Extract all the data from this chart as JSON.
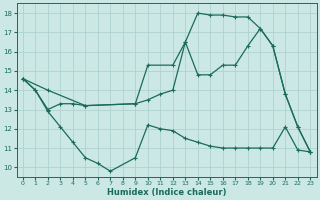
{
  "xlabel": "Humidex (Indice chaleur)",
  "bg_color": "#cce8e4",
  "grid_color": "#aacfcb",
  "line_color": "#1a6b5a",
  "xlim": [
    -0.5,
    23.5
  ],
  "ylim": [
    9.5,
    18.5
  ],
  "xticks": [
    0,
    1,
    2,
    3,
    4,
    5,
    6,
    7,
    8,
    9,
    10,
    11,
    12,
    13,
    14,
    15,
    16,
    17,
    18,
    19,
    20,
    21,
    22,
    23
  ],
  "yticks": [
    10,
    11,
    12,
    13,
    14,
    15,
    16,
    17,
    18
  ],
  "line1_x": [
    0,
    1,
    2,
    3,
    4,
    5,
    6,
    7,
    9,
    10,
    11,
    12,
    13,
    14,
    15,
    16,
    17,
    18,
    19,
    20,
    21,
    22,
    23
  ],
  "line1_y": [
    14.6,
    14.0,
    12.9,
    12.1,
    11.3,
    10.5,
    10.2,
    9.8,
    10.5,
    12.2,
    12.0,
    11.9,
    11.5,
    11.3,
    11.1,
    11.0,
    11.0,
    11.0,
    11.0,
    11.0,
    12.1,
    10.9,
    10.8
  ],
  "line2_x": [
    0,
    1,
    2,
    3,
    4,
    5,
    9,
    10,
    11,
    12,
    13,
    14,
    15,
    16,
    17,
    18,
    19,
    20,
    21,
    22,
    23
  ],
  "line2_y": [
    14.6,
    14.0,
    13.0,
    13.3,
    13.3,
    13.2,
    13.3,
    13.5,
    13.8,
    14.0,
    16.5,
    14.8,
    14.8,
    15.3,
    15.3,
    16.3,
    17.2,
    16.3,
    13.8,
    12.1,
    10.8
  ],
  "line3_x": [
    0,
    2,
    5,
    9,
    10,
    12,
    13,
    14,
    15,
    16,
    17,
    18,
    19,
    20,
    21,
    22,
    23
  ],
  "line3_y": [
    14.6,
    14.0,
    13.2,
    13.3,
    15.3,
    15.3,
    16.5,
    18.0,
    17.9,
    17.9,
    17.8,
    17.8,
    17.2,
    16.3,
    13.8,
    12.1,
    10.8
  ]
}
